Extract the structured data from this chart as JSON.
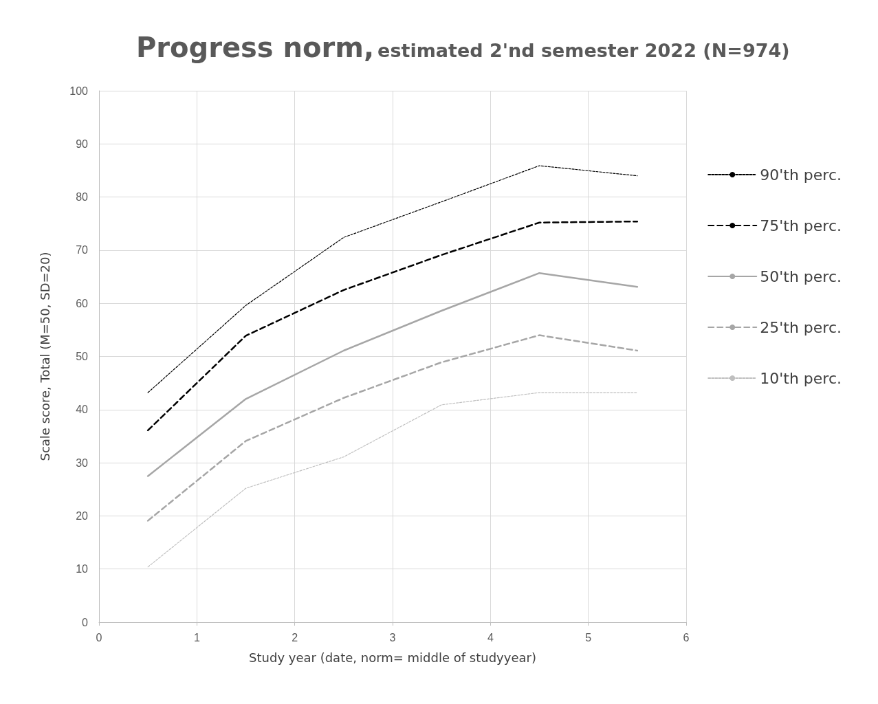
{
  "chart_data": {
    "type": "line",
    "title": "Progress norm,",
    "subtitle": "estimated 2'nd semester 2022 (N=974)",
    "xlabel": "Study year (date, norm= middle of studyyear)",
    "ylabel": "Scale score, Total (M=50, SD=20)",
    "x": [
      0.5,
      1.5,
      2.5,
      3.5,
      4.5,
      5.5
    ],
    "xlim": [
      0,
      6
    ],
    "xticks": [
      0,
      1,
      2,
      3,
      4,
      5,
      6
    ],
    "ylim": [
      0,
      100
    ],
    "yticks": [
      0,
      10,
      20,
      30,
      40,
      50,
      60,
      70,
      80,
      90,
      100
    ],
    "grid": true,
    "legend": "right",
    "marker": "none",
    "series": [
      {
        "name": "90'th perc.",
        "color": "#000000",
        "line_style": "dotted",
        "values": [
          43.2,
          59.6,
          72.4,
          79.1,
          85.9,
          84.0
        ]
      },
      {
        "name": "75'th perc.",
        "color": "#000000",
        "line_style": "dashed",
        "values": [
          36.1,
          53.9,
          62.5,
          69.1,
          75.2,
          75.4
        ]
      },
      {
        "name": "50'th perc.",
        "color": "#a6a6a6",
        "line_style": "solid",
        "values": [
          27.5,
          42.0,
          51.1,
          58.6,
          65.7,
          63.1
        ]
      },
      {
        "name": "25'th perc.",
        "color": "#a6a6a6",
        "line_style": "dashed",
        "values": [
          19.1,
          34.1,
          42.2,
          48.9,
          54.0,
          51.1
        ]
      },
      {
        "name": "10'th perc.",
        "color": "#bfbfbf",
        "line_style": "dotted",
        "values": [
          10.4,
          25.2,
          31.1,
          40.9,
          43.2,
          43.2
        ]
      }
    ]
  }
}
